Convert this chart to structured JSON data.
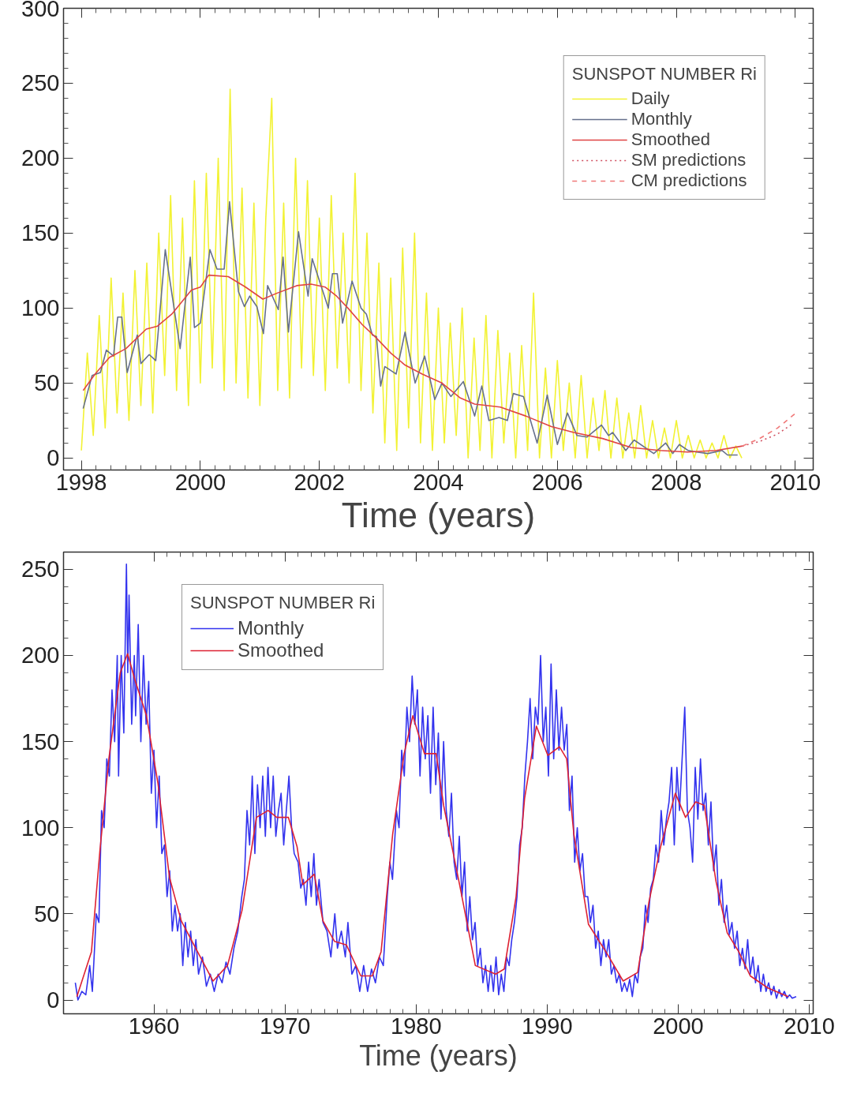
{
  "chart_data": [
    {
      "type": "line",
      "xlabel": "Time (years)",
      "legend_title": "SUNSPOT NUMBER Ri",
      "legend": "top right",
      "xlim": [
        1997.7,
        2010.3
      ],
      "ylim": [
        -8,
        300
      ],
      "xticks": [
        1998,
        2000,
        2002,
        2004,
        2006,
        2008,
        2010
      ],
      "yticks": [
        0,
        50,
        100,
        150,
        200,
        250,
        300
      ],
      "series": [
        {
          "name": "Daily",
          "color": "#f2f233",
          "line_style": "solid",
          "x": [
            1998.0,
            1998.1,
            1998.2,
            1998.3,
            1998.4,
            1998.5,
            1998.6,
            1998.7,
            1998.8,
            1998.9,
            1999.0,
            1999.1,
            1999.2,
            1999.3,
            1999.4,
            1999.5,
            1999.6,
            1999.7,
            1999.8,
            1999.9,
            2000.0,
            2000.1,
            2000.2,
            2000.3,
            2000.4,
            2000.5,
            2000.6,
            2000.7,
            2000.8,
            2000.9,
            2001.0,
            2001.1,
            2001.2,
            2001.3,
            2001.4,
            2001.5,
            2001.6,
            2001.7,
            2001.8,
            2001.9,
            2002.0,
            2002.1,
            2002.2,
            2002.3,
            2002.4,
            2002.5,
            2002.6,
            2002.7,
            2002.8,
            2002.9,
            2003.0,
            2003.1,
            2003.2,
            2003.3,
            2003.4,
            2003.5,
            2003.6,
            2003.7,
            2003.8,
            2003.9,
            2004.0,
            2004.1,
            2004.2,
            2004.3,
            2004.4,
            2004.5,
            2004.6,
            2004.7,
            2004.8,
            2004.9,
            2005.0,
            2005.1,
            2005.2,
            2005.3,
            2005.4,
            2005.5,
            2005.6,
            2005.7,
            2005.8,
            2005.9,
            2006.0,
            2006.1,
            2006.2,
            2006.3,
            2006.4,
            2006.5,
            2006.6,
            2006.7,
            2006.8,
            2006.9,
            2007.0,
            2007.1,
            2007.2,
            2007.3,
            2007.4,
            2007.5,
            2007.6,
            2007.7,
            2007.8,
            2007.9,
            2008.0,
            2008.1,
            2008.2,
            2008.3,
            2008.4,
            2008.5,
            2008.6,
            2008.7,
            2008.8,
            2008.9,
            2009.0,
            2009.1
          ],
          "values": [
            5,
            70,
            15,
            95,
            20,
            120,
            30,
            110,
            25,
            125,
            35,
            130,
            30,
            150,
            55,
            175,
            45,
            160,
            35,
            185,
            50,
            190,
            60,
            200,
            45,
            246,
            50,
            180,
            40,
            170,
            35,
            160,
            240,
            45,
            170,
            40,
            200,
            60,
            185,
            55,
            160,
            45,
            175,
            60,
            150,
            50,
            190,
            45,
            150,
            30,
            130,
            10,
            120,
            5,
            140,
            20,
            150,
            10,
            110,
            5,
            100,
            10,
            90,
            15,
            100,
            0,
            80,
            5,
            95,
            0,
            85,
            10,
            70,
            0,
            75,
            5,
            110,
            0,
            60,
            0,
            65,
            5,
            50,
            0,
            55,
            0,
            40,
            5,
            45,
            0,
            40,
            0,
            30,
            0,
            35,
            0,
            25,
            0,
            20,
            0,
            25,
            0,
            15,
            0,
            12,
            0,
            10,
            0,
            15,
            0,
            8,
            0
          ]
        },
        {
          "name": "Monthly",
          "color": "#66708c",
          "line_style": "solid",
          "x": [
            1998.03,
            1998.18,
            1998.32,
            1998.42,
            1998.54,
            1998.61,
            1998.68,
            1998.77,
            1998.94,
            1999.0,
            1999.14,
            1999.25,
            1999.41,
            1999.66,
            1999.83,
            1999.9,
            2000.0,
            2000.16,
            2000.28,
            2000.4,
            2000.49,
            2000.64,
            2000.74,
            2000.83,
            2000.95,
            2001.06,
            2001.13,
            2001.31,
            2001.39,
            2001.48,
            2001.65,
            2001.81,
            2001.88,
            2002.15,
            2002.22,
            2002.3,
            2002.39,
            2002.55,
            2002.7,
            2002.79,
            2002.89,
            2002.96,
            2003.03,
            2003.1,
            2003.29,
            2003.44,
            2003.61,
            2003.77,
            2003.94,
            2004.06,
            2004.21,
            2004.42,
            2004.61,
            2004.73,
            2004.85,
            2005.02,
            2005.16,
            2005.26,
            2005.43,
            2005.66,
            2005.83,
            2006.0,
            2006.17,
            2006.33,
            2006.5,
            2006.74,
            2006.86,
            2006.93,
            2007.15,
            2007.29,
            2007.62,
            2007.82,
            2007.94,
            2008.05,
            2008.2,
            2008.34,
            2008.53,
            2008.77,
            2008.86,
            2009.03
          ],
          "values": [
            33,
            55,
            57,
            72,
            68,
            94,
            94,
            57,
            82,
            63,
            69,
            65,
            139,
            73,
            134,
            87,
            90,
            139,
            126,
            126,
            171,
            111,
            101,
            108,
            101,
            83,
            115,
            99,
            134,
            84,
            151,
            108,
            133,
            100,
            123,
            123,
            90,
            118,
            100,
            96,
            82,
            81,
            48,
            61,
            56,
            84,
            50,
            68,
            39,
            50,
            41,
            51,
            28,
            48,
            25,
            27,
            25,
            43,
            41,
            10,
            42,
            9,
            30,
            15,
            14,
            22,
            15,
            17,
            5,
            12,
            3,
            10,
            3,
            9,
            5,
            4,
            3,
            5,
            2,
            2
          ]
        },
        {
          "name": "Smoothed",
          "color": "#e04444",
          "line_style": "solid",
          "x": [
            1998.03,
            1998.23,
            1998.47,
            1998.75,
            1999.09,
            1999.28,
            1999.52,
            1999.85,
            2000.0,
            2000.14,
            2000.47,
            2000.76,
            2001.05,
            2001.29,
            2001.62,
            2001.86,
            2002.1,
            2002.29,
            2002.48,
            2002.72,
            2002.96,
            2003.2,
            2003.44,
            2003.73,
            2004.06,
            2004.37,
            2004.61,
            2005.04,
            2005.47,
            2005.9,
            2006.28,
            2006.76,
            2007.24,
            2007.72,
            2008.19,
            2008.67,
            2009.11
          ],
          "values": [
            45,
            56,
            67,
            73,
            86,
            88,
            96,
            112,
            114,
            122,
            121,
            114,
            106,
            110,
            115,
            116,
            114,
            108,
            100,
            89,
            80,
            70,
            62,
            56,
            50,
            40,
            36,
            34,
            28,
            21,
            17,
            13,
            7,
            5,
            4,
            5,
            8
          ]
        },
        {
          "name": "SM predictions",
          "color": "#d05060",
          "line_style": "dotted",
          "x": [
            2009.11,
            2009.4,
            2009.7,
            2009.96
          ],
          "values": [
            8,
            11,
            16,
            23
          ]
        },
        {
          "name": "CM predictions",
          "color": "#f07878",
          "line_style": "dashed",
          "x": [
            2009.11,
            2009.4,
            2009.7,
            2010.01
          ],
          "values": [
            8,
            13,
            20,
            30
          ]
        }
      ]
    },
    {
      "type": "line",
      "xlabel": "Time (years)",
      "legend_title": "SUNSPOT NUMBER Ri",
      "legend": "top left",
      "xlim": [
        1953.1,
        2010.3
      ],
      "ylim": [
        -8,
        260
      ],
      "xticks": [
        1960,
        1970,
        1980,
        1990,
        2000,
        2010
      ],
      "yticks": [
        0,
        50,
        100,
        150,
        200,
        250
      ],
      "series": [
        {
          "name": "Monthly",
          "color": "#3333ee",
          "line_style": "solid",
          "x": [
            1954.0,
            1954.2,
            1954.5,
            1954.8,
            1955.1,
            1955.3,
            1955.6,
            1955.8,
            1956.0,
            1956.2,
            1956.4,
            1956.6,
            1956.8,
            1957.0,
            1957.2,
            1957.3,
            1957.5,
            1957.7,
            1957.9,
            1958.0,
            1958.1,
            1958.3,
            1958.5,
            1958.6,
            1958.8,
            1959.0,
            1959.2,
            1959.4,
            1959.6,
            1959.8,
            1960.0,
            1960.2,
            1960.4,
            1960.6,
            1960.8,
            1961.0,
            1961.2,
            1961.4,
            1961.6,
            1961.8,
            1962.0,
            1962.2,
            1962.4,
            1962.6,
            1962.8,
            1963.0,
            1963.2,
            1963.4,
            1963.7,
            1964.0,
            1964.3,
            1964.6,
            1964.9,
            1965.2,
            1965.5,
            1965.8,
            1966.1,
            1966.4,
            1966.7,
            1966.9,
            1967.1,
            1967.3,
            1967.5,
            1967.7,
            1967.9,
            1968.1,
            1968.3,
            1968.5,
            1968.7,
            1968.9,
            1969.1,
            1969.3,
            1969.5,
            1969.7,
            1969.9,
            1970.1,
            1970.3,
            1970.5,
            1970.7,
            1971.0,
            1971.2,
            1971.4,
            1971.6,
            1971.8,
            1972.0,
            1972.2,
            1972.4,
            1972.6,
            1972.9,
            1973.2,
            1973.5,
            1973.8,
            1974.0,
            1974.3,
            1974.6,
            1974.8,
            1975.1,
            1975.4,
            1975.7,
            1976.0,
            1976.3,
            1976.6,
            1976.9,
            1977.2,
            1977.5,
            1977.8,
            1978.0,
            1978.2,
            1978.5,
            1978.7,
            1978.9,
            1979.1,
            1979.3,
            1979.5,
            1979.7,
            1979.9,
            1980.1,
            1980.3,
            1980.5,
            1980.7,
            1980.9,
            1981.1,
            1981.3,
            1981.5,
            1981.7,
            1981.9,
            1982.1,
            1982.3,
            1982.5,
            1982.7,
            1982.9,
            1983.1,
            1983.3,
            1983.5,
            1983.7,
            1983.9,
            1984.1,
            1984.3,
            1984.5,
            1984.7,
            1984.9,
            1985.1,
            1985.3,
            1985.5,
            1985.7,
            1985.9,
            1986.1,
            1986.3,
            1986.5,
            1986.7,
            1986.9,
            1987.1,
            1987.3,
            1987.5,
            1987.7,
            1987.9,
            1988.1,
            1988.3,
            1988.5,
            1988.7,
            1988.9,
            1989.1,
            1989.3,
            1989.5,
            1989.7,
            1989.9,
            1990.1,
            1990.3,
            1990.5,
            1990.7,
            1990.9,
            1991.1,
            1991.3,
            1991.5,
            1991.7,
            1991.9,
            1992.1,
            1992.3,
            1992.5,
            1992.7,
            1992.9,
            1993.1,
            1993.3,
            1993.5,
            1993.7,
            1993.9,
            1994.1,
            1994.3,
            1994.5,
            1994.7,
            1994.9,
            1995.1,
            1995.3,
            1995.5,
            1995.7,
            1995.9,
            1996.1,
            1996.3,
            1996.5,
            1996.7,
            1996.9,
            1997.1,
            1997.3,
            1997.5,
            1997.7,
            1997.9,
            1998.1,
            1998.3,
            1998.5,
            1998.7,
            1998.9,
            1999.1,
            1999.3,
            1999.5,
            1999.7,
            1999.9,
            2000.1,
            2000.3,
            2000.5,
            2000.7,
            2000.9,
            2001.1,
            2001.3,
            2001.5,
            2001.7,
            2001.9,
            2002.1,
            2002.3,
            2002.5,
            2002.7,
            2002.9,
            2003.1,
            2003.3,
            2003.5,
            2003.7,
            2003.9,
            2004.1,
            2004.3,
            2004.5,
            2004.7,
            2004.9,
            2005.1,
            2005.3,
            2005.5,
            2005.7,
            2005.9,
            2006.1,
            2006.3,
            2006.5,
            2006.7,
            2006.9,
            2007.1,
            2007.3,
            2007.5,
            2007.7,
            2007.9,
            2008.1,
            2008.3,
            2008.5,
            2008.7,
            2009.0
          ],
          "values": [
            10,
            0,
            5,
            3,
            20,
            5,
            50,
            45,
            110,
            100,
            140,
            130,
            180,
            150,
            200,
            130,
            200,
            155,
            253,
            190,
            235,
            160,
            200,
            165,
            218,
            150,
            200,
            160,
            185,
            120,
            145,
            100,
            130,
            85,
            90,
            60,
            75,
            40,
            55,
            40,
            50,
            20,
            45,
            25,
            40,
            20,
            35,
            15,
            25,
            8,
            15,
            5,
            15,
            10,
            22,
            15,
            30,
            40,
            60,
            70,
            110,
            90,
            130,
            85,
            125,
            100,
            130,
            95,
            135,
            100,
            130,
            95,
            110,
            120,
            90,
            110,
            130,
            100,
            85,
            80,
            65,
            70,
            55,
            80,
            60,
            85,
            55,
            70,
            45,
            40,
            25,
            50,
            30,
            40,
            25,
            45,
            15,
            20,
            5,
            20,
            5,
            18,
            10,
            25,
            20,
            60,
            80,
            70,
            110,
            100,
            145,
            130,
            170,
            150,
            188,
            160,
            180,
            130,
            170,
            140,
            165,
            120,
            170,
            125,
            155,
            105,
            150,
            110,
            95,
            120,
            80,
            70,
            95,
            60,
            80,
            40,
            60,
            35,
            45,
            20,
            30,
            10,
            20,
            5,
            20,
            5,
            25,
            3,
            15,
            5,
            25,
            20,
            35,
            45,
            60,
            90,
            100,
            130,
            150,
            175,
            140,
            170,
            160,
            200,
            150,
            170,
            130,
            195,
            140,
            180,
            145,
            170,
            145,
            160,
            110,
            130,
            80,
            100,
            75,
            85,
            60,
            60,
            45,
            55,
            30,
            40,
            20,
            35,
            25,
            35,
            15,
            20,
            10,
            15,
            5,
            10,
            5,
            12,
            2,
            15,
            10,
            25,
            30,
            55,
            45,
            65,
            70,
            90,
            80,
            110,
            90,
            105,
            115,
            135,
            90,
            135,
            110,
            140,
            170,
            110,
            100,
            80,
            135,
            105,
            140,
            110,
            120,
            90,
            115,
            75,
            90,
            55,
            70,
            45,
            55,
            38,
            45,
            30,
            40,
            20,
            30,
            18,
            35,
            15,
            25,
            10,
            20,
            5,
            15,
            5,
            10,
            3,
            8,
            1,
            6,
            2,
            5,
            1,
            3,
            1,
            2
          ]
        },
        {
          "name": "Smoothed",
          "color": "#dd2233",
          "line_style": "solid",
          "x": [
            1954.12,
            1955.23,
            1955.88,
            1956.56,
            1957.43,
            1957.99,
            1958.54,
            1959.43,
            1960.3,
            1961.19,
            1962.08,
            1963.19,
            1964.51,
            1965.61,
            1966.72,
            1967.82,
            1968.71,
            1969.37,
            1970.26,
            1970.92,
            1971.36,
            1972.23,
            1972.89,
            1973.78,
            1974.68,
            1975.78,
            1976.66,
            1977.33,
            1978.21,
            1979.09,
            1979.75,
            1980.64,
            1981.53,
            1982.1,
            1983.32,
            1984.52,
            1986.07,
            1986.73,
            1987.63,
            1988.28,
            1989.18,
            1990.05,
            1990.94,
            1991.49,
            1992.04,
            1993.15,
            1994.48,
            1995.8,
            1996.91,
            1997.77,
            1998.66,
            1999.78,
            2000.56,
            2001.33,
            2001.99,
            2002.88,
            2003.74,
            2004.62,
            2005.5,
            2006.84,
            2008.39
          ],
          "values": [
            2,
            28,
            87,
            140,
            190,
            201,
            186,
            165,
            126,
            71,
            46,
            30,
            11,
            20,
            52,
            106,
            110,
            106,
            106,
            89,
            67,
            73,
            46,
            34,
            32,
            14,
            14,
            28,
            96,
            143,
            165,
            143,
            143,
            113,
            67,
            20,
            15,
            18,
            60,
            117,
            159,
            142,
            147,
            140,
            96,
            44,
            28,
            11,
            16,
            57,
            89,
            120,
            106,
            115,
            113,
            69,
            39,
            28,
            14,
            7,
            2
          ]
        }
      ]
    }
  ]
}
